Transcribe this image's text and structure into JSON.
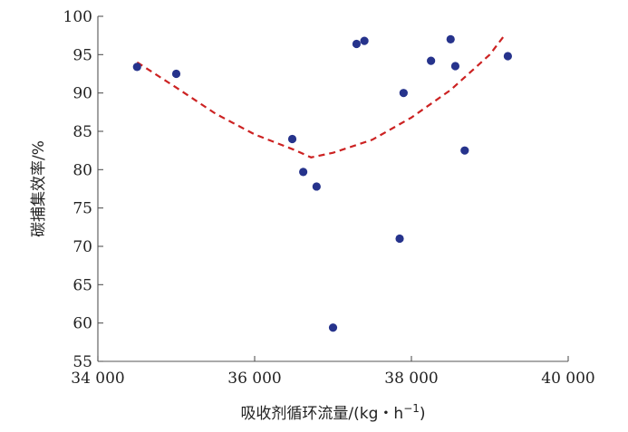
{
  "chart_data": {
    "type": "scatter",
    "title": "",
    "xlabel": "吸收剂循环流量/(kg・h",
    "xlabel_sup": "−1",
    "xlabel_end": ")",
    "ylabel": "碳捕集效率/%",
    "xlim": [
      34000,
      40000
    ],
    "ylim": [
      55,
      100
    ],
    "xticks": [
      34000,
      36000,
      38000,
      40000
    ],
    "xtick_labels": [
      "34 000",
      "36 000",
      "38 000",
      "40 000"
    ],
    "yticks": [
      55,
      60,
      65,
      70,
      75,
      80,
      85,
      90,
      95,
      100
    ],
    "ytick_labels": [
      "55",
      "60",
      "65",
      "70",
      "75",
      "80",
      "85",
      "90",
      "95",
      "100"
    ],
    "grid": false,
    "point_color": "#26338c",
    "fit_color": "#cc2222",
    "points": [
      {
        "x": 34500,
        "y": 93.4
      },
      {
        "x": 35000,
        "y": 92.5
      },
      {
        "x": 36480,
        "y": 84.0
      },
      {
        "x": 36620,
        "y": 79.7
      },
      {
        "x": 36790,
        "y": 77.8
      },
      {
        "x": 37000,
        "y": 59.4
      },
      {
        "x": 37300,
        "y": 96.4
      },
      {
        "x": 37400,
        "y": 96.8
      },
      {
        "x": 37850,
        "y": 71.0
      },
      {
        "x": 37900,
        "y": 90.0
      },
      {
        "x": 38250,
        "y": 94.2
      },
      {
        "x": 38500,
        "y": 97.0
      },
      {
        "x": 38560,
        "y": 93.5
      },
      {
        "x": 38680,
        "y": 82.5
      },
      {
        "x": 39230,
        "y": 94.8
      }
    ],
    "fit_curve": {
      "type": "quadratic",
      "x": [
        34500,
        35000,
        35500,
        36000,
        36500,
        36720,
        37000,
        37500,
        38000,
        38500,
        39000,
        39200
      ],
      "y": [
        94.0,
        90.7,
        87.3,
        84.6,
        82.6,
        81.6,
        82.2,
        83.9,
        86.8,
        90.4,
        95.0,
        97.7
      ]
    }
  }
}
